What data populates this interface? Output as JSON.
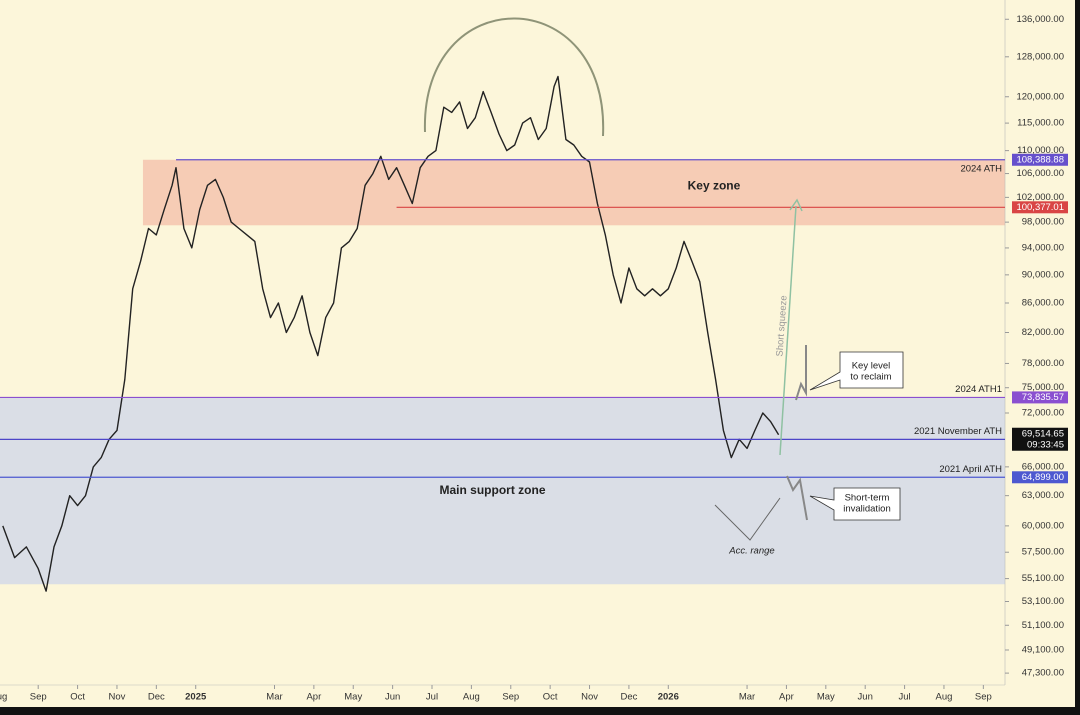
{
  "chart_data": {
    "type": "line",
    "log": true,
    "color": "#222222",
    "xlim": [
      -0.97,
      24.55
    ],
    "ylim": [
      46400,
      140300
    ],
    "xticks": [
      {
        "value": -1,
        "label": "Aug"
      },
      {
        "value": 0,
        "label": "Sep"
      },
      {
        "value": 1,
        "label": "Oct"
      },
      {
        "value": 2,
        "label": "Nov"
      },
      {
        "value": 3,
        "label": "Dec"
      },
      {
        "value": 4,
        "label": "2025"
      },
      {
        "value": 6,
        "label": "Mar"
      },
      {
        "value": 7,
        "label": "Apr"
      },
      {
        "value": 8,
        "label": "May"
      },
      {
        "value": 9,
        "label": "Jun"
      },
      {
        "value": 10,
        "label": "Jul"
      },
      {
        "value": 11,
        "label": "Aug"
      },
      {
        "value": 12,
        "label": "Sep"
      },
      {
        "value": 13,
        "label": "Oct"
      },
      {
        "value": 14,
        "label": "Nov"
      },
      {
        "value": 15,
        "label": "Dec"
      },
      {
        "value": 16,
        "label": "2026"
      },
      {
        "value": 18,
        "label": "Mar"
      },
      {
        "value": 19,
        "label": "Apr"
      },
      {
        "value": 20,
        "label": "May"
      },
      {
        "value": 21,
        "label": "Jun"
      },
      {
        "value": 22,
        "label": "Jul"
      },
      {
        "value": 23,
        "label": "Aug"
      },
      {
        "value": 24,
        "label": "Sep"
      }
    ],
    "yticks": [
      {
        "value": 136000,
        "label": "136,000.00"
      },
      {
        "value": 128000,
        "label": "128,000.00"
      },
      {
        "value": 120000,
        "label": "120,000.00"
      },
      {
        "value": 115000,
        "label": "115,000.00"
      },
      {
        "value": 110000,
        "label": "110,000.00"
      },
      {
        "value": 106000,
        "label": "106,000.00"
      },
      {
        "value": 102000,
        "label": "102,000.00"
      },
      {
        "value": 98000,
        "label": "98,000.00"
      },
      {
        "value": 94000,
        "label": "94,000.00"
      },
      {
        "value": 90000,
        "label": "90,000.00"
      },
      {
        "value": 86000,
        "label": "86,000.00"
      },
      {
        "value": 82000,
        "label": "82,000.00"
      },
      {
        "value": 78000,
        "label": "78,000.00"
      },
      {
        "value": 75000,
        "label": "75,000.00"
      },
      {
        "value": 72000,
        "label": "72,000.00"
      },
      {
        "value": 66000,
        "label": "66,000.00"
      },
      {
        "value": 63000,
        "label": "63,000.00"
      },
      {
        "value": 60000,
        "label": "60,000.00"
      },
      {
        "value": 57500,
        "label": "57,500.00"
      },
      {
        "value": 55100,
        "label": "55,100.00"
      },
      {
        "value": 53100,
        "label": "53,100.00"
      },
      {
        "value": 51100,
        "label": "51,100.00"
      },
      {
        "value": 49100,
        "label": "49,100.00"
      },
      {
        "value": 47300,
        "label": "47,300.00"
      }
    ],
    "x": [
      -0.9,
      -0.6,
      -0.3,
      0.0,
      0.2,
      0.4,
      0.6,
      0.8,
      1.0,
      1.2,
      1.4,
      1.6,
      1.8,
      2.0,
      2.2,
      2.4,
      2.6,
      2.8,
      3.0,
      3.2,
      3.4,
      3.5,
      3.7,
      3.9,
      4.1,
      4.3,
      4.5,
      4.7,
      4.9,
      5.1,
      5.3,
      5.5,
      5.7,
      5.9,
      6.1,
      6.3,
      6.5,
      6.7,
      6.9,
      7.1,
      7.3,
      7.5,
      7.7,
      7.9,
      8.1,
      8.3,
      8.5,
      8.7,
      8.9,
      9.1,
      9.3,
      9.5,
      9.7,
      9.9,
      10.1,
      10.3,
      10.5,
      10.7,
      10.9,
      11.1,
      11.3,
      11.5,
      11.7,
      11.9,
      12.1,
      12.3,
      12.5,
      12.7,
      12.9,
      13.1,
      13.2,
      13.4,
      13.6,
      13.8,
      14.0,
      14.2,
      14.4,
      14.6,
      14.8,
      15.0,
      15.2,
      15.4,
      15.6,
      15.8,
      16.0,
      16.2,
      16.4,
      16.6,
      16.8,
      17.0,
      17.2,
      17.4,
      17.6,
      17.8,
      18.0,
      18.2,
      18.4,
      18.6,
      18.8
    ],
    "values": [
      60000,
      57000,
      58000,
      56000,
      54000,
      58000,
      60000,
      63000,
      62000,
      63000,
      66000,
      67000,
      69000,
      70000,
      76000,
      88000,
      92000,
      97000,
      96000,
      100000,
      104000,
      107000,
      97000,
      94000,
      100000,
      104000,
      105000,
      102000,
      98000,
      97000,
      96000,
      95000,
      88000,
      84000,
      86000,
      82000,
      84000,
      87000,
      82000,
      79000,
      84000,
      86000,
      94000,
      95000,
      97000,
      104000,
      106000,
      109000,
      105000,
      107000,
      104000,
      101000,
      107000,
      109000,
      110000,
      118000,
      117000,
      119000,
      114000,
      116000,
      121000,
      117000,
      113000,
      110000,
      111000,
      115000,
      116000,
      112000,
      114000,
      122000,
      124000,
      112000,
      111000,
      109000,
      108000,
      101000,
      96000,
      90000,
      86000,
      91000,
      88000,
      87000,
      88000,
      87000,
      88000,
      91000,
      95000,
      92000,
      89000,
      82000,
      76000,
      70000,
      67000,
      69000,
      68000,
      70000,
      72000,
      71000,
      69514.65
    ],
    "zones": [
      {
        "label": "Key zone",
        "from": 97500,
        "to": 108388.88,
        "x_start": 2.66,
        "color": "#f5c4ae"
      },
      {
        "label": "Main support zone",
        "from": 54600,
        "to": 73835.57,
        "x_start": -0.97,
        "color": "#d3d9e8"
      }
    ],
    "levels": [
      {
        "name": "2024 ATH",
        "value": 108388.88,
        "value_label": "108,388.88",
        "x_start": 3.5,
        "color": "#6650cc"
      },
      {
        "value": 100377.01,
        "value_label": "100,377.01",
        "x_start": 9.1,
        "color": "#d94545"
      },
      {
        "name": "2024 ATH1",
        "value": 73835.57,
        "value_label": "73,835.57",
        "x_start": -0.97,
        "color": "#8a4fd0"
      },
      {
        "name": "2021 November ATH",
        "value": 69000,
        "value_label": "69,000.00",
        "x_start": -0.97,
        "color": "#4d45c8"
      },
      {
        "name": "2021 April ATH",
        "value": 64899,
        "value_label": "64,899.00",
        "x_start": -0.97,
        "color": "#4d58d0"
      }
    ],
    "current_price": {
      "value": 69514.65,
      "value_label": "69,514.65",
      "countdown": "09:33:45"
    },
    "annotations": {
      "short_squeeze": "Short squeeze",
      "key_level": [
        "Key level",
        "to reclaim"
      ],
      "invalidation": [
        "Short-term",
        "invalidation"
      ],
      "acc_range": "Acc. range"
    }
  }
}
